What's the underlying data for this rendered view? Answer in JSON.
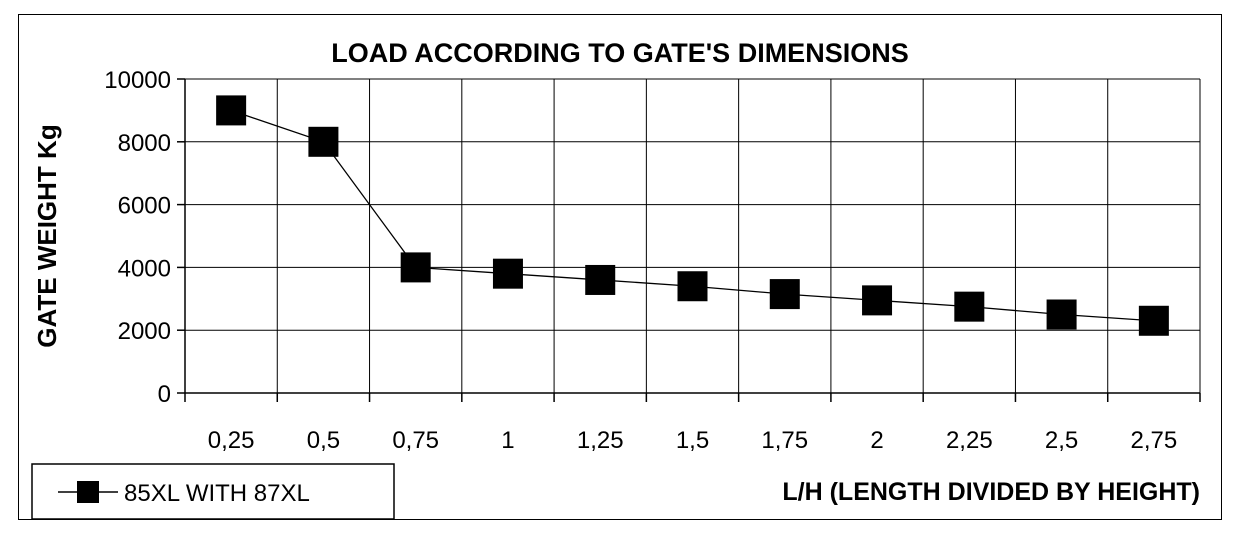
{
  "chart_data": {
    "type": "line",
    "title": "LOAD ACCORDING TO GATE'S DIMENSIONS",
    "xlabel": "L/H (LENGTH DIVIDED BY  HEIGHT)",
    "ylabel": "GATE WEIGHT Kg",
    "categories": [
      "0,25",
      "0,5",
      "0,75",
      "1",
      "1,25",
      "1,5",
      "1,75",
      "2",
      "2,25",
      "2,5",
      "2,75"
    ],
    "series": [
      {
        "name": "85XL WITH 87XL",
        "values": [
          9000,
          8000,
          4000,
          3800,
          3600,
          3400,
          3150,
          2950,
          2750,
          2500,
          2300
        ],
        "color": "#000000",
        "marker": "square"
      }
    ],
    "ylim": [
      0,
      10000
    ],
    "yticks": [
      0,
      2000,
      4000,
      6000,
      8000,
      10000
    ],
    "grid": true,
    "legend_position": "bottom-left"
  }
}
